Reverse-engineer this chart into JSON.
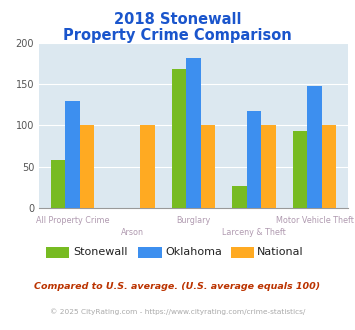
{
  "title_line1": "2018 Stonewall",
  "title_line2": "Property Crime Comparison",
  "categories": [
    "All Property Crime",
    "Arson",
    "Burglary",
    "Larceny & Theft",
    "Motor Vehicle Theft"
  ],
  "series": {
    "Stonewall": [
      58,
      0,
      168,
      27,
      93
    ],
    "Oklahoma": [
      130,
      0,
      182,
      118,
      148
    ],
    "National": [
      100,
      100,
      100,
      100,
      100
    ]
  },
  "colors": {
    "Stonewall": "#77bb22",
    "Oklahoma": "#3d8fef",
    "National": "#ffaa22"
  },
  "ylim": [
    0,
    200
  ],
  "yticks": [
    0,
    50,
    100,
    150,
    200
  ],
  "plot_bg": "#dce8f0",
  "title_color": "#1a55cc",
  "xlabel_color": "#b09ab0",
  "footnote1": "Compared to U.S. average. (U.S. average equals 100)",
  "footnote2": "© 2025 CityRating.com - https://www.cityrating.com/crime-statistics/",
  "footnote1_color": "#bb3300",
  "footnote2_color": "#aaaaaa",
  "label_rows": [
    [
      "All Property Crime",
      "",
      "Burglary",
      "",
      "Motor Vehicle Theft"
    ],
    [
      "",
      "Arson",
      "",
      "Larceny & Theft",
      ""
    ]
  ]
}
